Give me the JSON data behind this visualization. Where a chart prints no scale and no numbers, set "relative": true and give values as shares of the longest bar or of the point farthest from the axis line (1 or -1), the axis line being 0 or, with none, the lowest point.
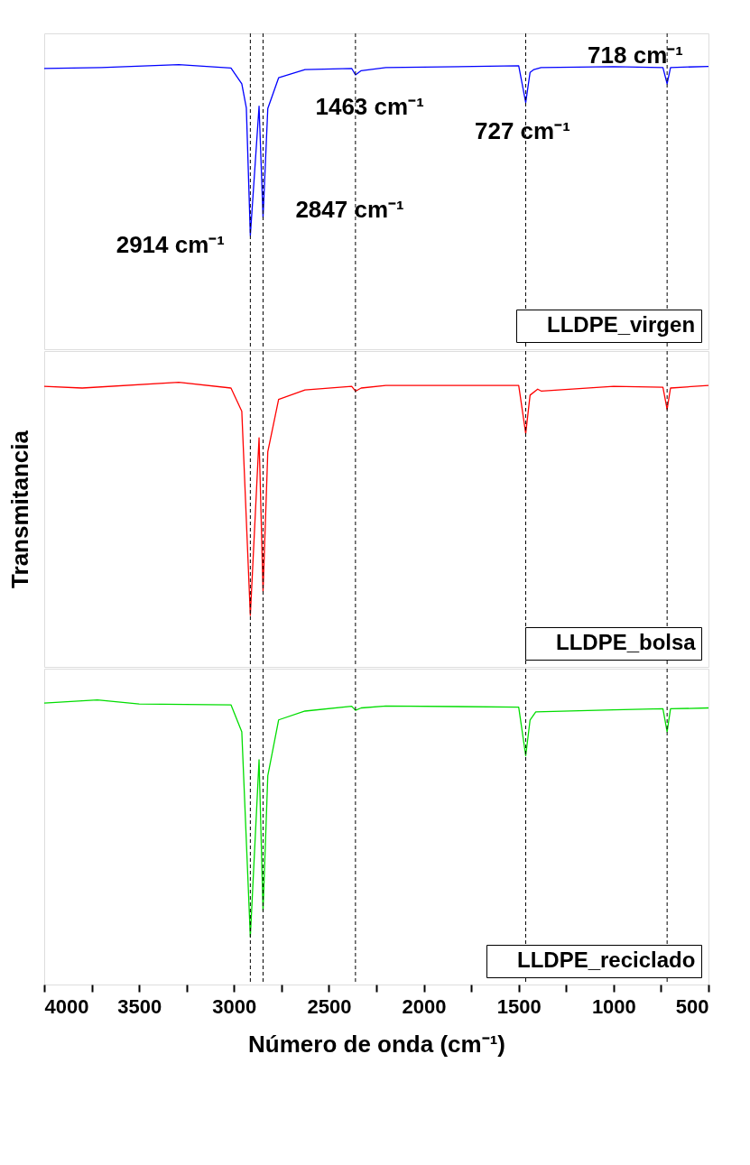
{
  "chart_data": [
    {
      "type": "line",
      "relative": true,
      "xlim": [
        4000,
        500
      ],
      "tick_labels": false,
      "legend": "bottom right",
      "x": [
        4000,
        3700,
        3291,
        3016,
        2959,
        2935,
        2914,
        2868,
        2847,
        2822,
        2765,
        2626,
        2380,
        2360,
        2330,
        2200,
        1500,
        1463,
        1440,
        1420,
        1382,
        1000,
        740,
        718,
        700,
        500
      ],
      "series": [
        {
          "name": "LLDPE_virgen",
          "color": "#0000ff",
          "values": [
            0.987,
            0.99,
            1.0,
            0.988,
            0.933,
            0.848,
            0.4,
            0.854,
            0.464,
            0.846,
            0.954,
            0.983,
            0.987,
            0.964,
            0.979,
            0.99,
            0.996,
            0.867,
            0.973,
            0.983,
            0.99,
            0.993,
            0.99,
            0.933,
            0.99,
            0.994
          ]
        }
      ],
      "ref_lines": [
        {
          "axis": "x",
          "value": 2914,
          "color": "#000000",
          "line_style": "dashed"
        },
        {
          "axis": "x",
          "value": 2847,
          "color": "#000000",
          "line_style": "dashed"
        },
        {
          "axis": "x",
          "value": 2360,
          "color": "#000000",
          "line_style": "dashed"
        },
        {
          "axis": "x",
          "value": 1463,
          "color": "#000000",
          "line_style": "dashed"
        },
        {
          "axis": "x",
          "value": 718,
          "color": "#000000",
          "line_style": "dashed"
        }
      ],
      "annotations": [
        "2914 cm⁻¹",
        "2847 cm⁻¹",
        "1463 cm⁻¹",
        "727 cm⁻¹",
        "718 cm⁻¹"
      ]
    },
    {
      "type": "line",
      "relative": true,
      "xlim": [
        4000,
        500
      ],
      "tick_labels": false,
      "legend": "bottom right",
      "ylabel": "Transmitancia",
      "x": [
        4000,
        3800,
        3291,
        3016,
        2959,
        2914,
        2868,
        2847,
        2822,
        2765,
        2626,
        2380,
        2360,
        2330,
        2200,
        1500,
        1463,
        1440,
        1400,
        1380,
        1000,
        740,
        718,
        700,
        500
      ],
      "series": [
        {
          "name": "LLDPE_bolsa",
          "color": "#ff0000",
          "values": [
            0.986,
            0.98,
            1.0,
            0.98,
            0.898,
            0.181,
            0.805,
            0.266,
            0.756,
            0.94,
            0.973,
            0.986,
            0.969,
            0.98,
            0.989,
            0.989,
            0.82,
            0.955,
            0.976,
            0.969,
            0.986,
            0.983,
            0.905,
            0.98,
            0.989
          ]
        }
      ],
      "ref_lines": [
        {
          "axis": "x",
          "value": 2914,
          "color": "#000000",
          "line_style": "dashed"
        },
        {
          "axis": "x",
          "value": 2847,
          "color": "#000000",
          "line_style": "dashed"
        },
        {
          "axis": "x",
          "value": 2360,
          "color": "#000000",
          "line_style": "dashed"
        },
        {
          "axis": "x",
          "value": 1463,
          "color": "#000000",
          "line_style": "dashed"
        },
        {
          "axis": "x",
          "value": 718,
          "color": "#000000",
          "line_style": "dashed"
        }
      ]
    },
    {
      "type": "line",
      "relative": true,
      "xlim": [
        4000,
        500
      ],
      "tick_labels": "x",
      "legend": "bottom right",
      "xlabel": "Número de onda (cm⁻¹)",
      "xticks": [
        4000,
        {
          "value": 3750,
          "label": null
        },
        3500,
        {
          "value": 3250,
          "label": null
        },
        3000,
        {
          "value": 2750,
          "label": null
        },
        2500,
        {
          "value": 2250,
          "label": null
        },
        2000,
        {
          "value": 1750,
          "label": null
        },
        1500,
        {
          "value": 1250,
          "label": null
        },
        1000,
        {
          "value": 750,
          "label": null
        },
        500
      ],
      "x": [
        4000,
        3720,
        3500,
        3016,
        2959,
        2914,
        2868,
        2847,
        2822,
        2765,
        2626,
        2380,
        2360,
        2330,
        2200,
        1500,
        1463,
        1440,
        1410,
        1000,
        740,
        718,
        700,
        500
      ],
      "series": [
        {
          "name": "LLDPE_reciclado",
          "color": "#00dd00",
          "values": [
            0.989,
            1.0,
            0.986,
            0.983,
            0.888,
            0.168,
            0.79,
            0.259,
            0.734,
            0.93,
            0.961,
            0.978,
            0.964,
            0.972,
            0.979,
            0.975,
            0.804,
            0.93,
            0.958,
            0.965,
            0.969,
            0.888,
            0.969,
            0.972
          ]
        }
      ],
      "ref_lines": [
        {
          "axis": "x",
          "value": 2914,
          "color": "#000000",
          "line_style": "dashed"
        },
        {
          "axis": "x",
          "value": 2847,
          "color": "#000000",
          "line_style": "dashed"
        },
        {
          "axis": "x",
          "value": 2360,
          "color": "#000000",
          "line_style": "dashed"
        },
        {
          "axis": "x",
          "value": 1463,
          "color": "#000000",
          "line_style": "dashed"
        },
        {
          "axis": "x",
          "value": 718,
          "color": "#000000",
          "line_style": "dashed"
        }
      ]
    }
  ]
}
